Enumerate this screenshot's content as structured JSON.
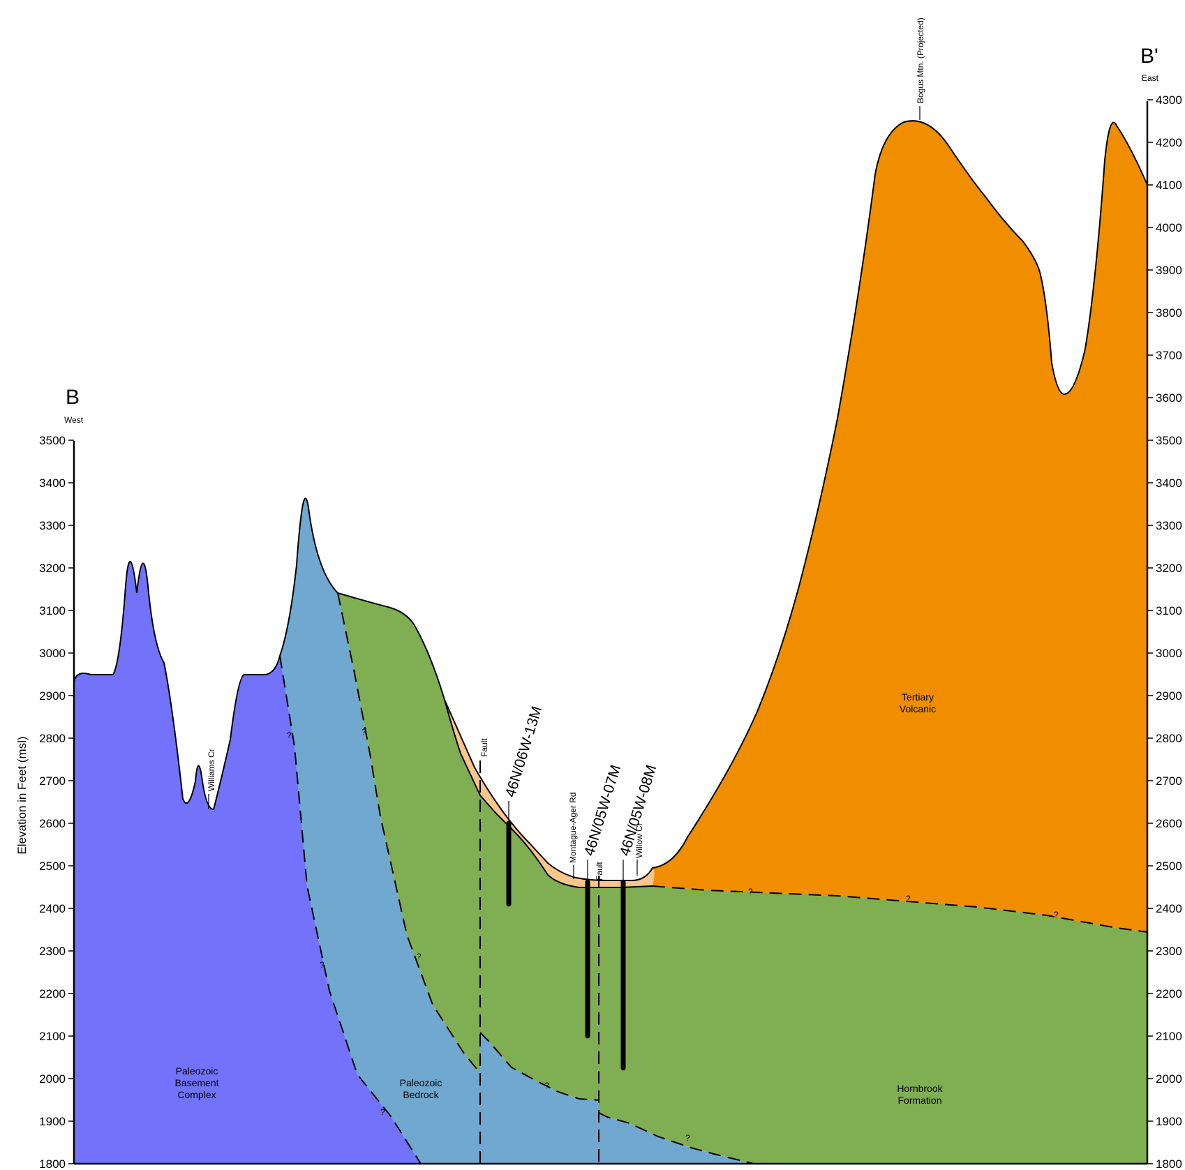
{
  "section": {
    "west_label": "B",
    "west_sub": "West",
    "east_label": "B'",
    "east_sub": "East",
    "y_axis_label": "Elevation in Feet (msl)"
  },
  "left_axis": {
    "min": 1800,
    "max": 3500,
    "step": 100
  },
  "right_axis": {
    "min": 1800,
    "max": 4300,
    "step": 100
  },
  "units": [
    {
      "name": [
        "Paleozoic",
        "Basement",
        "Complex"
      ],
      "color": "#7272fa"
    },
    {
      "name": [
        "Paleozoic",
        "Bedrock"
      ],
      "color": "#70a8d0"
    },
    {
      "name": [
        "Hornbrook",
        "Formation"
      ],
      "color": "#80ae52"
    },
    {
      "name": [
        "Tertiary",
        "Volcanic"
      ],
      "color": "#f08e00"
    },
    {
      "name": [],
      "color": "#fbc58c"
    }
  ],
  "features": {
    "williams_cr": "Williams Cr",
    "fault_west": "Fault",
    "fault_east": "Fault",
    "montague_rd": "Montague-Ager Rd",
    "willow_cr": "Willow Cr",
    "bogus_mtn": "Bogus Mtn. (Projected)"
  },
  "wells": [
    {
      "id": "46N/06W-13M",
      "top": 2600,
      "bottom": 2410
    },
    {
      "id": "46N/05W-07M",
      "top": 2462,
      "bottom": 2100
    },
    {
      "id": "46N/05W-08M",
      "top": 2462,
      "bottom": 2025
    }
  ],
  "uncertain_mark": "?"
}
